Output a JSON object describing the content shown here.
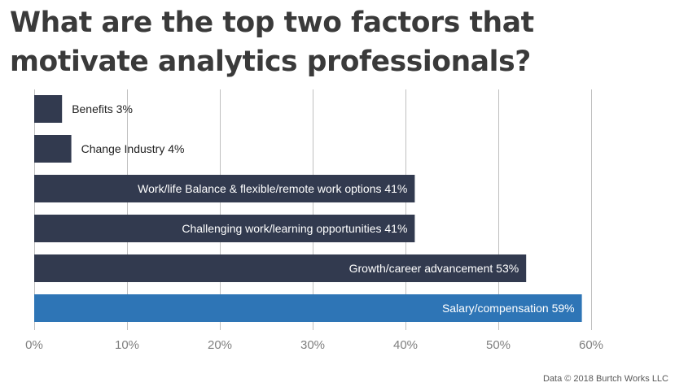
{
  "title": "What are the top two factors that motivate analytics professionals?",
  "footer": "Data © 2018 Burtch Works LLC",
  "colors": {
    "bar": "#323a4f",
    "highlight": "#2e75b6",
    "grid": "#bfbfbf",
    "axis_text": "#7f7f7f"
  },
  "chart_data": {
    "type": "bar",
    "orientation": "horizontal",
    "categories": [
      "Benefits",
      "Change Industry",
      "Work/life Balance & flexible/remote work options",
      "Challenging work/learning opportunities",
      "Growth/career advancement",
      "Salary/compensation"
    ],
    "values": [
      3,
      4,
      41,
      41,
      53,
      59
    ],
    "data_labels": [
      "Benefits 3%",
      "Change Industry 4%",
      "Work/life Balance & flexible/remote work options 41%",
      "Challenging work/learning opportunities 41%",
      "Growth/career advancement 53%",
      "Salary/compensation 59%"
    ],
    "highlight_index": 5,
    "xlim": [
      0,
      60
    ],
    "xticks": [
      0,
      10,
      20,
      30,
      40,
      50,
      60
    ],
    "xtick_labels": [
      "0%",
      "10%",
      "20%",
      "30%",
      "40%",
      "50%",
      "60%"
    ],
    "grid": true,
    "legend": "none"
  }
}
